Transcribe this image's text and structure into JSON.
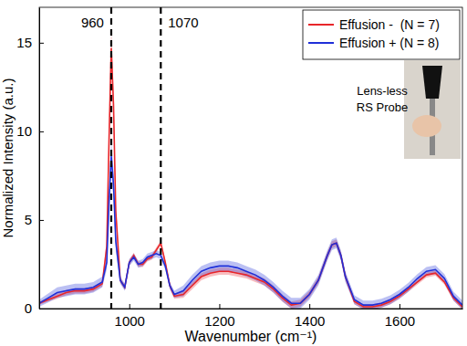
{
  "chart_data": {
    "type": "line",
    "x_label": "Wavenumber (cm⁻¹)",
    "y_label": "Normalized Intensity (a.u.)",
    "x": [
      800,
      820,
      840,
      860,
      880,
      900,
      920,
      940,
      950,
      955,
      960,
      965,
      970,
      980,
      990,
      1000,
      1010,
      1020,
      1030,
      1040,
      1050,
      1060,
      1070,
      1080,
      1090,
      1100,
      1120,
      1140,
      1160,
      1180,
      1200,
      1220,
      1240,
      1260,
      1280,
      1300,
      1320,
      1340,
      1360,
      1380,
      1400,
      1420,
      1440,
      1450,
      1460,
      1470,
      1480,
      1500,
      1520,
      1540,
      1560,
      1580,
      1600,
      1620,
      1640,
      1660,
      1680,
      1700,
      1720,
      1740
    ],
    "series": [
      {
        "name": "Effusion -  (N = 7)",
        "color": "#e8262a",
        "values": [
          0.3,
          0.5,
          0.7,
          0.9,
          1.0,
          1.0,
          1.1,
          1.4,
          3.5,
          9.5,
          14.7,
          11.5,
          5.5,
          1.6,
          1.2,
          2.6,
          3.0,
          2.5,
          2.5,
          2.8,
          2.9,
          3.3,
          3.7,
          2.6,
          1.3,
          0.7,
          0.8,
          1.3,
          1.8,
          2.0,
          2.1,
          2.1,
          2.0,
          1.9,
          1.7,
          1.5,
          1.1,
          0.6,
          0.2,
          0.3,
          0.8,
          1.6,
          3.0,
          3.6,
          3.7,
          3.0,
          1.8,
          0.4,
          0.1,
          0.1,
          0.2,
          0.4,
          0.7,
          1.1,
          1.5,
          1.9,
          2.0,
          1.5,
          0.6,
          0.1
        ],
        "error": [
          0.1,
          0.1,
          0.15,
          0.15,
          0.15,
          0.15,
          0.15,
          0.15,
          0.4,
          0.8,
          1.2,
          0.9,
          0.5,
          0.15,
          0.15,
          0.15,
          0.15,
          0.15,
          0.15,
          0.15,
          0.15,
          0.15,
          0.15,
          0.15,
          0.15,
          0.15,
          0.2,
          0.2,
          0.2,
          0.2,
          0.2,
          0.2,
          0.2,
          0.2,
          0.2,
          0.2,
          0.2,
          0.2,
          0.2,
          0.2,
          0.2,
          0.2,
          0.2,
          0.2,
          0.2,
          0.2,
          0.2,
          0.15,
          0.15,
          0.15,
          0.15,
          0.15,
          0.15,
          0.15,
          0.15,
          0.15,
          0.15,
          0.15,
          0.15,
          0.15
        ]
      },
      {
        "name": "Effusion + (N = 8)",
        "color": "#1f2fd8",
        "values": [
          0.3,
          0.6,
          0.9,
          1.0,
          1.1,
          1.1,
          1.2,
          1.5,
          2.6,
          6.0,
          8.6,
          7.0,
          3.8,
          1.6,
          1.2,
          2.6,
          2.9,
          2.5,
          2.6,
          2.9,
          3.0,
          3.1,
          3.0,
          2.4,
          1.3,
          0.8,
          1.0,
          1.6,
          2.1,
          2.3,
          2.4,
          2.4,
          2.3,
          2.1,
          1.9,
          1.6,
          1.2,
          0.7,
          0.3,
          0.3,
          0.8,
          1.6,
          3.0,
          3.6,
          3.7,
          3.0,
          1.8,
          0.5,
          0.2,
          0.2,
          0.3,
          0.5,
          0.8,
          1.2,
          1.7,
          2.1,
          2.2,
          1.7,
          0.7,
          0.2
        ],
        "error": [
          0.2,
          0.25,
          0.3,
          0.3,
          0.3,
          0.3,
          0.3,
          0.3,
          0.4,
          0.7,
          0.9,
          0.8,
          0.5,
          0.2,
          0.2,
          0.2,
          0.2,
          0.2,
          0.2,
          0.2,
          0.2,
          0.2,
          0.2,
          0.2,
          0.2,
          0.2,
          0.3,
          0.3,
          0.3,
          0.3,
          0.3,
          0.3,
          0.3,
          0.3,
          0.3,
          0.3,
          0.3,
          0.3,
          0.3,
          0.3,
          0.3,
          0.3,
          0.3,
          0.3,
          0.3,
          0.3,
          0.3,
          0.25,
          0.25,
          0.25,
          0.25,
          0.25,
          0.25,
          0.25,
          0.25,
          0.25,
          0.25,
          0.25,
          0.25,
          0.25
        ]
      }
    ],
    "vlines": [
      960,
      1070
    ],
    "annotations": [
      "Lens-less",
      "RS Probe"
    ],
    "xlim": [
      800,
      1740
    ],
    "ylim": [
      0,
      17
    ],
    "xticks": [
      1000,
      1200,
      1400,
      1600
    ],
    "yticks": [
      0,
      5,
      10,
      15
    ],
    "legend": "upper right",
    "grid": false
  }
}
